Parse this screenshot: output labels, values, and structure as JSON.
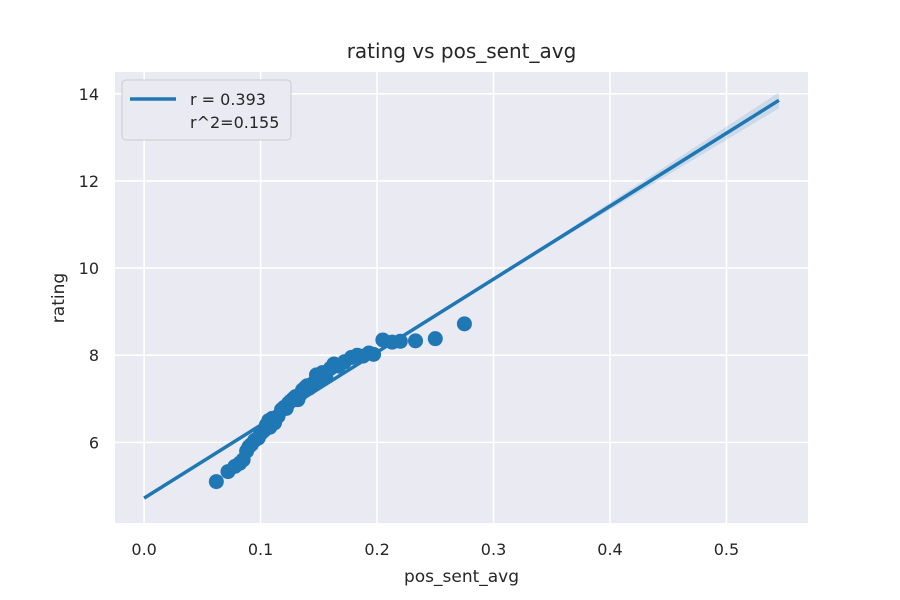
{
  "chart_data": {
    "type": "scatter",
    "title": "rating vs pos_sent_avg",
    "xlabel": "pos_sent_avg",
    "ylabel": "rating",
    "xlim": [
      -0.025,
      0.57
    ],
    "ylim": [
      4.15,
      14.5
    ],
    "xticks": [
      0.0,
      0.1,
      0.2,
      0.3,
      0.4,
      0.5
    ],
    "xtick_labels": [
      "0.0",
      "0.1",
      "0.2",
      "0.3",
      "0.4",
      "0.5"
    ],
    "yticks": [
      6,
      8,
      10,
      12,
      14
    ],
    "ytick_labels": [
      "6",
      "8",
      "10",
      "12",
      "14"
    ],
    "grid": true,
    "legend_position": "top-left",
    "legend": [
      "r = 0.393",
      "r^2=0.155"
    ],
    "colors": {
      "series": "#1f77b4",
      "background": "#eaeaf2",
      "grid": "#ffffff",
      "text": "#262626"
    },
    "regression_line": {
      "x": [
        0.0,
        0.545
      ],
      "y": [
        4.72,
        13.85
      ]
    },
    "points": {
      "x": [
        0.062,
        0.072,
        0.078,
        0.082,
        0.085,
        0.088,
        0.09,
        0.092,
        0.095,
        0.098,
        0.1,
        0.102,
        0.104,
        0.105,
        0.107,
        0.108,
        0.11,
        0.112,
        0.115,
        0.118,
        0.12,
        0.122,
        0.124,
        0.126,
        0.128,
        0.13,
        0.132,
        0.134,
        0.136,
        0.138,
        0.14,
        0.142,
        0.145,
        0.148,
        0.15,
        0.153,
        0.156,
        0.16,
        0.163,
        0.167,
        0.172,
        0.178,
        0.183,
        0.188,
        0.193,
        0.197,
        0.205,
        0.213,
        0.22,
        0.233,
        0.25,
        0.275
      ],
      "y": [
        5.1,
        5.33,
        5.45,
        5.52,
        5.6,
        5.8,
        5.9,
        5.95,
        6.05,
        6.1,
        6.2,
        6.25,
        6.3,
        6.4,
        6.5,
        6.35,
        6.55,
        6.45,
        6.6,
        6.75,
        6.8,
        6.78,
        6.9,
        6.95,
        7.0,
        7.05,
        6.98,
        7.1,
        7.2,
        7.25,
        7.3,
        7.25,
        7.35,
        7.55,
        7.45,
        7.6,
        7.5,
        7.7,
        7.8,
        7.75,
        7.85,
        7.95,
        8.0,
        7.98,
        8.05,
        8.02,
        8.35,
        8.3,
        8.32,
        8.33,
        8.38,
        8.72
      ]
    }
  }
}
